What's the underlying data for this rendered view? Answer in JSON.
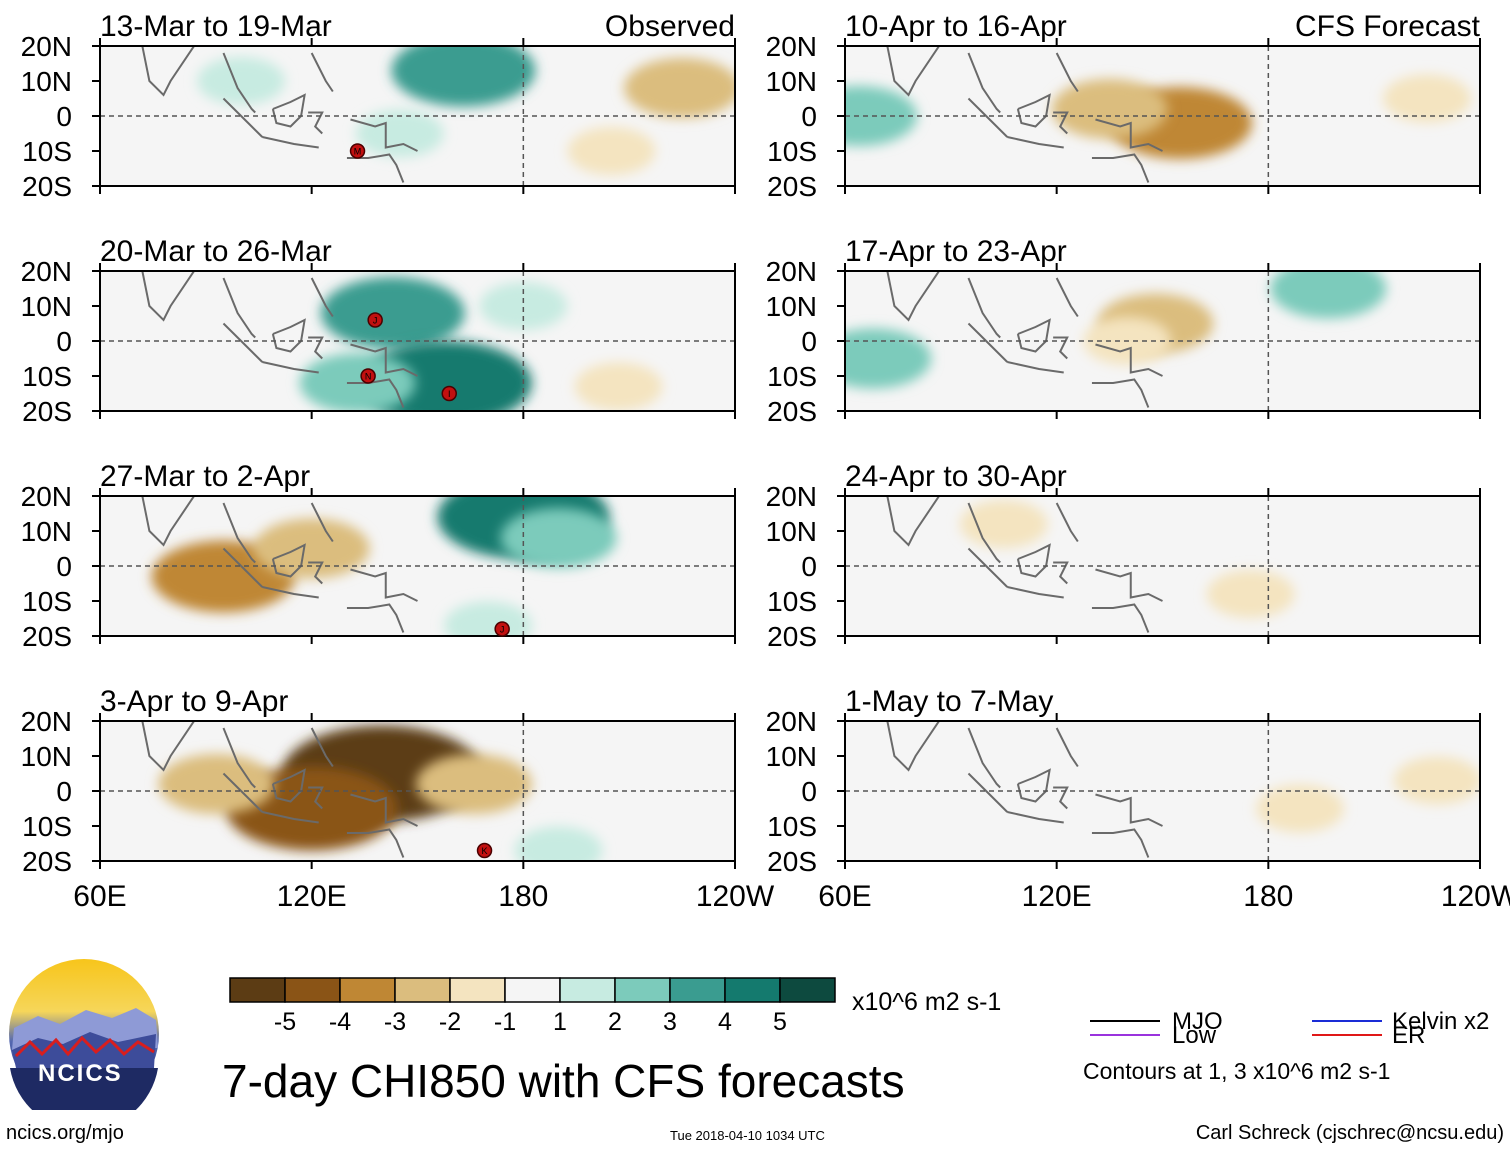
{
  "chart_data": {
    "type": "heatmap",
    "title": "7-day CHI850 with CFS forecasts",
    "units": "x10^6 m2 s-1",
    "variable": "CHI850 anomaly (7-day mean)",
    "x_axis": {
      "range": [
        "60E",
        "120W"
      ],
      "ticks": [
        "60E",
        "120E",
        "180",
        "120W"
      ]
    },
    "y_axis": {
      "range": [
        "20S",
        "20N"
      ],
      "ticks": [
        "20N",
        "10N",
        "0",
        "10S",
        "20S"
      ]
    },
    "colorbar": {
      "colors": [
        "#5c3c14",
        "#8a5416",
        "#bf8734",
        "#dbbd7e",
        "#f4e4c0",
        "#f5f5f5",
        "#c7ebe1",
        "#7ccbbb",
        "#3a9c90",
        "#147a6e",
        "#0d4a3f"
      ],
      "ticks": [
        "-5",
        "-4",
        "-3",
        "-2",
        "-1",
        "1",
        "2",
        "3",
        "4",
        "5"
      ]
    },
    "contours": {
      "note": "Contours at 1, 3 x10^6 m2 s-1",
      "legend": [
        {
          "label": "MJO",
          "color": "#000000"
        },
        {
          "label": "Kelvin x2",
          "color": "#1a2cd6"
        },
        {
          "label": "Low",
          "color": "#9a33dd"
        },
        {
          "label": "ER",
          "color": "#e01818"
        }
      ]
    },
    "panels": [
      {
        "period": "13-Mar to 19-Mar",
        "tag": "Observed",
        "source": "observed",
        "anomalies": [
          {
            "lon": 100,
            "lat": 10,
            "value": 1
          },
          {
            "lon": 163,
            "lat": 13,
            "value": 3
          },
          {
            "lon": 145,
            "lat": -5,
            "value": 1
          },
          {
            "lon": 225,
            "lat": 8,
            "value": -2
          },
          {
            "lon": 205,
            "lat": -10,
            "value": -1
          }
        ],
        "storms": [
          {
            "label": "M",
            "lon": 133,
            "lat": -10
          }
        ]
      },
      {
        "period": "20-Mar to 26-Mar",
        "tag": "",
        "source": "observed",
        "anomalies": [
          {
            "lon": 143,
            "lat": 8,
            "value": 3
          },
          {
            "lon": 158,
            "lat": -12,
            "value": 4
          },
          {
            "lon": 133,
            "lat": -12,
            "value": 2
          },
          {
            "lon": 180,
            "lat": 10,
            "value": 1
          },
          {
            "lon": 207,
            "lat": -13,
            "value": -1
          }
        ],
        "storms": [
          {
            "label": "J",
            "lon": 138,
            "lat": 6
          },
          {
            "label": "N",
            "lon": 136,
            "lat": -10
          },
          {
            "label": "I",
            "lon": 159,
            "lat": -15
          }
        ]
      },
      {
        "period": "27-Mar to 2-Apr",
        "tag": "",
        "source": "observed",
        "anomalies": [
          {
            "lon": 95,
            "lat": -3,
            "value": -3
          },
          {
            "lon": 120,
            "lat": 5,
            "value": -2
          },
          {
            "lon": 180,
            "lat": 14,
            "value": 4
          },
          {
            "lon": 190,
            "lat": 8,
            "value": 2
          },
          {
            "lon": 170,
            "lat": -17,
            "value": 1
          }
        ],
        "storms": [
          {
            "label": "J",
            "lon": 174,
            "lat": -18
          }
        ]
      },
      {
        "period": "3-Apr to 9-Apr",
        "tag": "",
        "source": "observed",
        "anomalies": [
          {
            "lon": 140,
            "lat": 5,
            "value": -5
          },
          {
            "lon": 120,
            "lat": -5,
            "value": -4
          },
          {
            "lon": 93,
            "lat": 2,
            "value": -2
          },
          {
            "lon": 166,
            "lat": 2,
            "value": -2
          },
          {
            "lon": 190,
            "lat": -17,
            "value": 1
          }
        ],
        "storms": [
          {
            "label": "K",
            "lon": 169,
            "lat": -17
          }
        ]
      },
      {
        "period": "10-Apr to 16-Apr",
        "tag": "CFS Forecast",
        "source": "forecast",
        "anomalies": [
          {
            "lon": 155,
            "lat": -2,
            "value": -3
          },
          {
            "lon": 135,
            "lat": 2,
            "value": -2
          },
          {
            "lon": 225,
            "lat": 5,
            "value": -1
          },
          {
            "lon": 64,
            "lat": 0,
            "value": 2
          }
        ],
        "storms": []
      },
      {
        "period": "17-Apr to 23-Apr",
        "tag": "",
        "source": "forecast",
        "anomalies": [
          {
            "lon": 148,
            "lat": 5,
            "value": -2
          },
          {
            "lon": 140,
            "lat": 0,
            "value": -1
          },
          {
            "lon": 197,
            "lat": 15,
            "value": 2
          },
          {
            "lon": 68,
            "lat": -5,
            "value": 2
          }
        ],
        "storms": []
      },
      {
        "period": "24-Apr to 30-Apr",
        "tag": "",
        "source": "forecast",
        "anomalies": [
          {
            "lon": 105,
            "lat": 12,
            "value": -1
          },
          {
            "lon": 175,
            "lat": -8,
            "value": -1
          }
        ],
        "storms": []
      },
      {
        "period": "1-May to 7-May",
        "tag": "",
        "source": "forecast",
        "anomalies": [
          {
            "lon": 228,
            "lat": 3,
            "value": -1
          },
          {
            "lon": 189,
            "lat": -5,
            "value": -1
          }
        ],
        "storms": []
      }
    ]
  },
  "logo": {
    "label": "NCICS"
  },
  "footer": {
    "left": "ncics.org/mjo",
    "timestamp": "Tue 2018-04-10 1034 UTC",
    "right": "Carl Schreck (cjschrec@ncsu.edu)"
  }
}
